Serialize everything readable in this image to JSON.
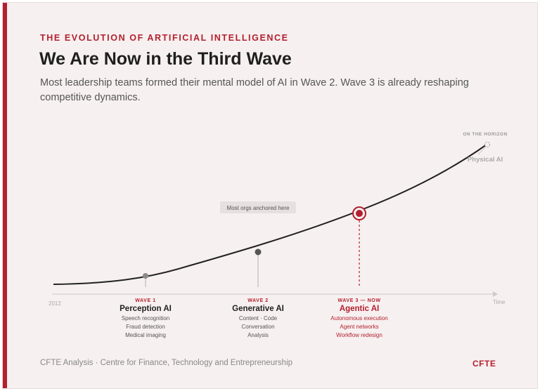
{
  "header": {
    "eyebrow": "THE EVOLUTION OF ARTIFICIAL INTELLIGENCE",
    "title": "We Are Now in the Third Wave",
    "subtitle": "Most leadership teams formed their mental model of AI in Wave 2. Wave 3 is already reshaping competitive dynamics."
  },
  "axis": {
    "start_label": "2012",
    "end_label": "Time"
  },
  "callout": {
    "text": "Most orgs anchored here"
  },
  "horizon": {
    "tag": "ON THE HORIZON",
    "label": "Physical AI"
  },
  "waves": [
    {
      "tag": "WAVE 1",
      "name": "Perception AI",
      "items": [
        "Speech recognition",
        "Fraud detection",
        "Medical imaging"
      ]
    },
    {
      "tag": "WAVE 2",
      "name": "Generative AI",
      "items": [
        "Content · Code",
        "Conversation",
        "Analysis"
      ]
    },
    {
      "tag": "WAVE 3 — NOW",
      "name": "Agentic AI",
      "items": [
        "Autonomous execution",
        "Agent networks",
        "Workflow redesign"
      ]
    }
  ],
  "colors": {
    "accent": "#b3202e",
    "curve": "#222222",
    "muted": "#999999",
    "text": "#1f1f1f"
  },
  "footer": {
    "source": "CFTE Analysis · Centre for Finance, Technology and Entrepreneurship",
    "brand": "CFTE"
  }
}
